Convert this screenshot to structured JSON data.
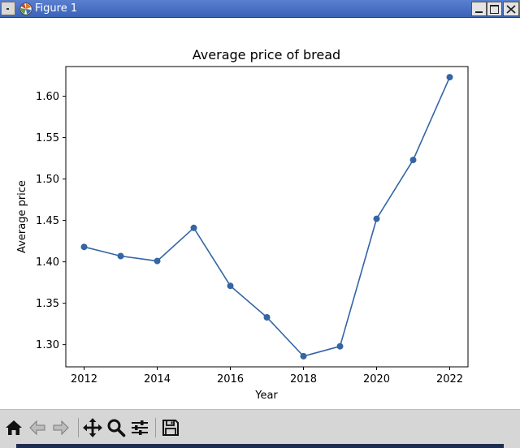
{
  "window": {
    "title": "Figure 1"
  },
  "chart_data": {
    "type": "line",
    "title": "Average price of bread",
    "xlabel": "Year",
    "ylabel": "Average price",
    "x": [
      2012,
      2013,
      2014,
      2015,
      2016,
      2017,
      2018,
      2019,
      2020,
      2021,
      2022
    ],
    "series": [
      {
        "values": [
          1.418,
          1.407,
          1.401,
          1.441,
          1.371,
          1.333,
          1.286,
          1.298,
          1.452,
          1.523,
          1.623
        ]
      }
    ],
    "xlim": [
      2011.5,
      2022.5
    ],
    "ylim": [
      1.2732,
      1.6358
    ],
    "xticks": [
      2012,
      2014,
      2016,
      2018,
      2020,
      2022
    ],
    "yticks": [
      1.3,
      1.35,
      1.4,
      1.45,
      1.5,
      1.55,
      1.6
    ],
    "ytick_labels": [
      "1.30",
      "1.35",
      "1.40",
      "1.45",
      "1.50",
      "1.55",
      "1.60"
    ],
    "grid": false,
    "line_color": "#3465a4",
    "marker": "circle"
  },
  "toolbar": {
    "tools": [
      {
        "name": "home",
        "icon": "home-icon"
      },
      {
        "name": "back",
        "icon": "back-arrow-icon"
      },
      {
        "name": "forward",
        "icon": "forward-arrow-icon"
      },
      {
        "name": "pan",
        "icon": "pan-icon"
      },
      {
        "name": "zoom",
        "icon": "zoom-icon"
      },
      {
        "name": "configure",
        "icon": "sliders-icon"
      },
      {
        "name": "save",
        "icon": "save-icon"
      }
    ]
  }
}
